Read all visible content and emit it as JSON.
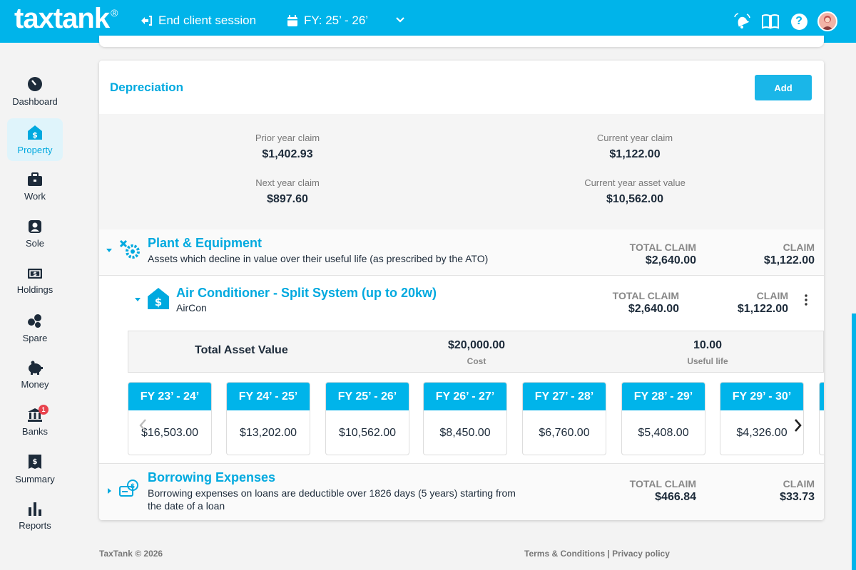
{
  "header": {
    "logo": "taxtank",
    "logo_mark": "®",
    "end_session": "End client session",
    "fy_selected": "FY: 25’ - 26’"
  },
  "sidebar": {
    "items": [
      {
        "label": "Dashboard",
        "icon": "dashboard-icon"
      },
      {
        "label": "Property",
        "icon": "property-icon",
        "active": true
      },
      {
        "label": "Work",
        "icon": "briefcase-icon"
      },
      {
        "label": "Sole",
        "icon": "sole-trader-icon"
      },
      {
        "label": "Holdings",
        "icon": "holdings-icon"
      },
      {
        "label": "Spare",
        "icon": "spare-icon"
      },
      {
        "label": "Money",
        "icon": "piggy-bank-icon"
      },
      {
        "label": "Banks",
        "icon": "bank-icon",
        "badge": "1"
      },
      {
        "label": "Summary",
        "icon": "summary-icon"
      },
      {
        "label": "Reports",
        "icon": "reports-icon"
      }
    ]
  },
  "depreciation": {
    "title": "Depreciation",
    "add_label": "Add",
    "summary": {
      "prior_label": "Prior year claim",
      "prior_value": "$1,402.93",
      "current_label": "Current year claim",
      "current_value": "$1,122.00",
      "next_label": "Next year claim",
      "next_value": "$897.60",
      "asset_label": "Current year asset value",
      "asset_value": "$10,562.00"
    },
    "plant": {
      "title": "Plant & Equipment",
      "subtitle": "Assets which decline in value over their useful life (as prescribed by the ATO)",
      "total_claim_label": "TOTAL CLAIM",
      "total_claim": "$2,640.00",
      "claim_label": "CLAIM",
      "claim": "$1,122.00"
    },
    "asset": {
      "title": "Air Conditioner - Split System (up to 20kw)",
      "subtitle": "AirCon",
      "total_claim_label": "TOTAL CLAIM",
      "total_claim": "$2,640.00",
      "claim_label": "CLAIM",
      "claim": "$1,122.00",
      "tav_label": "Total Asset Value",
      "cost": "$20,000.00",
      "cost_label": "Cost",
      "useful_life": "10.00",
      "useful_life_label": "Useful life",
      "years": [
        {
          "fy": "FY 23’ - 24’",
          "value": "$16,503.00"
        },
        {
          "fy": "FY 24’ - 25’",
          "value": "$13,202.00"
        },
        {
          "fy": "FY 25’ - 26’",
          "value": "$10,562.00"
        },
        {
          "fy": "FY 26’ - 27’",
          "value": "$8,450.00"
        },
        {
          "fy": "FY 27’ - 28’",
          "value": "$6,760.00"
        },
        {
          "fy": "FY 28’ - 29’",
          "value": "$5,408.00"
        },
        {
          "fy": "FY 29’ - 30’",
          "value": "$4,326.00"
        }
      ]
    },
    "borrowing": {
      "title": "Borrowing Expenses",
      "subtitle_1": "Borrowing expenses on loans are deductible over 1826 days (5 years) starting from",
      "subtitle_2": "the date of a loan",
      "total_claim_label": "TOTAL CLAIM",
      "total_claim": "$466.84",
      "claim_label": "CLAIM",
      "claim": "$33.73"
    }
  },
  "footer": {
    "copyright": "TaxTank © 2026",
    "terms": "Terms & Conditions",
    "separator": "|",
    "privacy": "Privacy policy"
  },
  "colors": {
    "brand": "#00b4ea",
    "title": "#00a9df",
    "badge": "#e8434d"
  }
}
